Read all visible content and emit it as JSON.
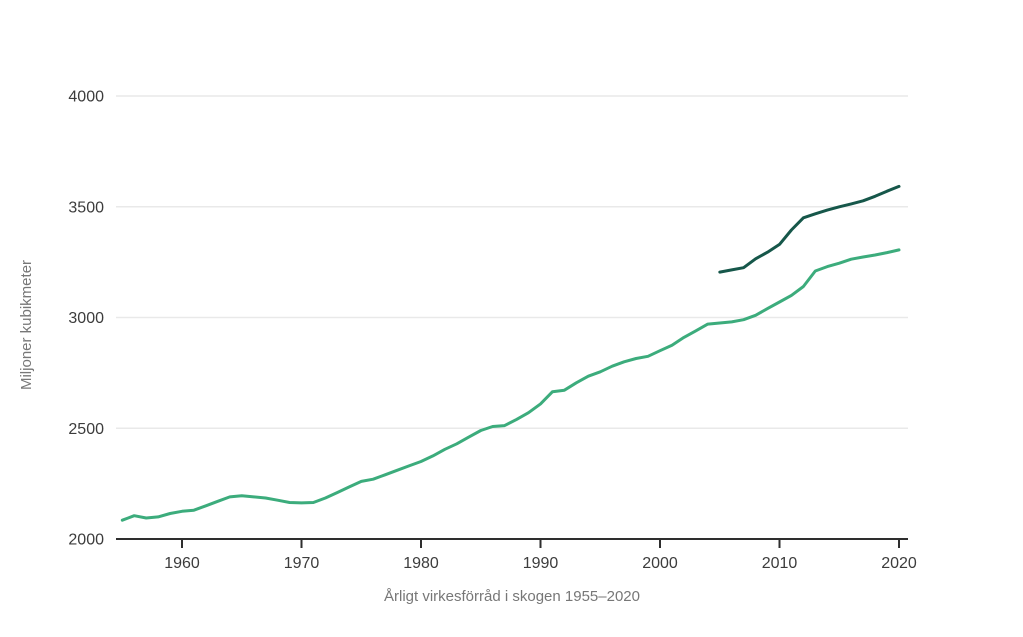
{
  "chart_data": {
    "type": "line",
    "title": "",
    "xlabel": "Årligt virkesförråd i skogen 1955–2020",
    "ylabel": "Miljoner kubikmeter",
    "x_ticks": [
      1960,
      1970,
      1980,
      1990,
      2000,
      2010,
      2020
    ],
    "y_ticks": [
      2000,
      2500,
      3000,
      3500,
      4000
    ],
    "xlim": [
      1954.5,
      2021
    ],
    "ylim": [
      2000,
      4000
    ],
    "grid": "horizontal-only",
    "legend": "none",
    "background": "#ffffff",
    "series": [
      {
        "id": "light-green-line-1955-2020",
        "color": "#3cac7c",
        "years": [
          1955,
          1956,
          1957,
          1958,
          1959,
          1960,
          1961,
          1962,
          1963,
          1964,
          1965,
          1966,
          1967,
          1968,
          1969,
          1970,
          1971,
          1972,
          1973,
          1974,
          1975,
          1976,
          1977,
          1978,
          1979,
          1980,
          1981,
          1982,
          1983,
          1984,
          1985,
          1986,
          1987,
          1988,
          1989,
          1990,
          1991,
          1992,
          1993,
          1994,
          1995,
          1996,
          1997,
          1998,
          1999,
          2000,
          2001,
          2002,
          2003,
          2004,
          2005,
          2006,
          2007,
          2008,
          2009,
          2010,
          2011,
          2012,
          2013,
          2014,
          2015,
          2016,
          2017,
          2018,
          2019,
          2020
        ],
        "values": [
          2085,
          2105,
          2095,
          2100,
          2115,
          2125,
          2130,
          2150,
          2170,
          2190,
          2195,
          2190,
          2185,
          2175,
          2165,
          2163,
          2165,
          2185,
          2210,
          2235,
          2260,
          2270,
          2290,
          2310,
          2330,
          2350,
          2375,
          2405,
          2430,
          2460,
          2490,
          2508,
          2512,
          2540,
          2570,
          2610,
          2665,
          2672,
          2705,
          2735,
          2755,
          2780,
          2800,
          2815,
          2825,
          2850,
          2875,
          2910,
          2940,
          2970,
          2975,
          2980,
          2990,
          3010,
          3040,
          3070,
          3100,
          3140,
          3210,
          3230,
          3245,
          3263,
          3273,
          3282,
          3293,
          3305
        ]
      },
      {
        "id": "dark-green-line-2005-2020",
        "color": "#16574a",
        "years": [
          2005,
          2006,
          2007,
          2008,
          2009,
          2010,
          2011,
          2012,
          2013,
          2014,
          2015,
          2016,
          2017,
          2018,
          2019,
          2020
        ],
        "values": [
          3205,
          3215,
          3225,
          3265,
          3295,
          3330,
          3395,
          3450,
          3468,
          3485,
          3500,
          3513,
          3527,
          3547,
          3570,
          3592
        ]
      }
    ]
  }
}
